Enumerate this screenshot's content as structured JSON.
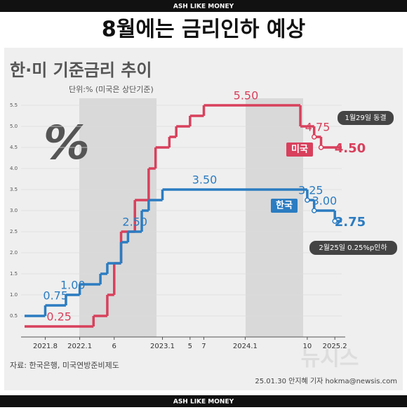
{
  "brand_top": "ASH LIKE MONEY",
  "headline": "8월에는 금리인하 예상",
  "brand_bottom": "ASH LIKE MONEY",
  "chart_data": {
    "type": "step",
    "title": "한·미 기준금리 추이",
    "subtitle": "단위:% (미국은 상단기준)",
    "icon_text": "%",
    "xlim": [
      "2021-05",
      "2025-03"
    ],
    "ylim": [
      0,
      5.75
    ],
    "xticks": [
      {
        "value": "2021-08",
        "label": "2021.8"
      },
      {
        "value": "2022-01",
        "label": "2022.1"
      },
      {
        "value": "2022-06",
        "label": "6"
      },
      {
        "value": "2023-01",
        "label": "2023.1"
      },
      {
        "value": "2023-05",
        "label": "5"
      },
      {
        "value": "2023-07",
        "label": "7"
      },
      {
        "value": "2024-01",
        "label": "2024.1"
      },
      {
        "value": "2024-10",
        "label": "10"
      },
      {
        "value": "2025-02",
        "label": "2025.2"
      }
    ],
    "yticks": [
      0.5,
      {
        "value": 1,
        "label": "1.0"
      },
      1.5,
      {
        "value": 2,
        "label": "2.0"
      },
      2.5,
      {
        "value": 3,
        "label": "3.0"
      },
      3.5,
      {
        "value": 4,
        "label": "4.0"
      },
      4.5,
      {
        "value": 5,
        "label": "5.0"
      },
      5.5
    ],
    "grid": true,
    "series": [
      {
        "name": "미국",
        "color": "#d8405c",
        "x": [
          "2021-05",
          "2022-03",
          "2022-05",
          "2022-06",
          "2022-07",
          "2022-09",
          "2022-11",
          "2022-12",
          "2023-02",
          "2023-03",
          "2023-05",
          "2023-07",
          "2024-09",
          "2024-11",
          "2024-12"
        ],
        "values": [
          0.25,
          0.5,
          1,
          1.75,
          2.5,
          3.25,
          4,
          4.5,
          4.75,
          5,
          5.25,
          5.5,
          5,
          4.75,
          4.5
        ],
        "value_labels": [
          "0.25",
          null,
          null,
          null,
          null,
          null,
          null,
          null,
          null,
          null,
          null,
          "5.50",
          null,
          "4.75",
          "4.50"
        ]
      },
      {
        "name": "한국",
        "color": "#2b7cc1",
        "x": [
          "2021-05",
          "2021-08",
          "2021-11",
          "2022-01",
          "2022-04",
          "2022-05",
          "2022-07",
          "2022-08",
          "2022-10",
          "2022-11",
          "2023-01",
          "2024-10",
          "2024-11",
          "2025-02"
        ],
        "values": [
          0.5,
          0.75,
          1,
          1.25,
          1.5,
          1.75,
          2.25,
          2.5,
          3,
          3.25,
          3.5,
          3.25,
          3,
          2.75
        ],
        "value_labels": [
          null,
          "0.75",
          "1.00",
          null,
          null,
          null,
          null,
          "2.50",
          null,
          null,
          "3.50",
          "3.25",
          "3.00",
          "2.75"
        ]
      }
    ],
    "annotations": [
      "1월29일 동결",
      "2월25일 0.25%p인하"
    ],
    "source": "자료: 한국은행, 미국연방준비제도",
    "credit": "25.01.30 안지혜 기자 hokma@newsis.com",
    "watermark": "뉴시스"
  }
}
